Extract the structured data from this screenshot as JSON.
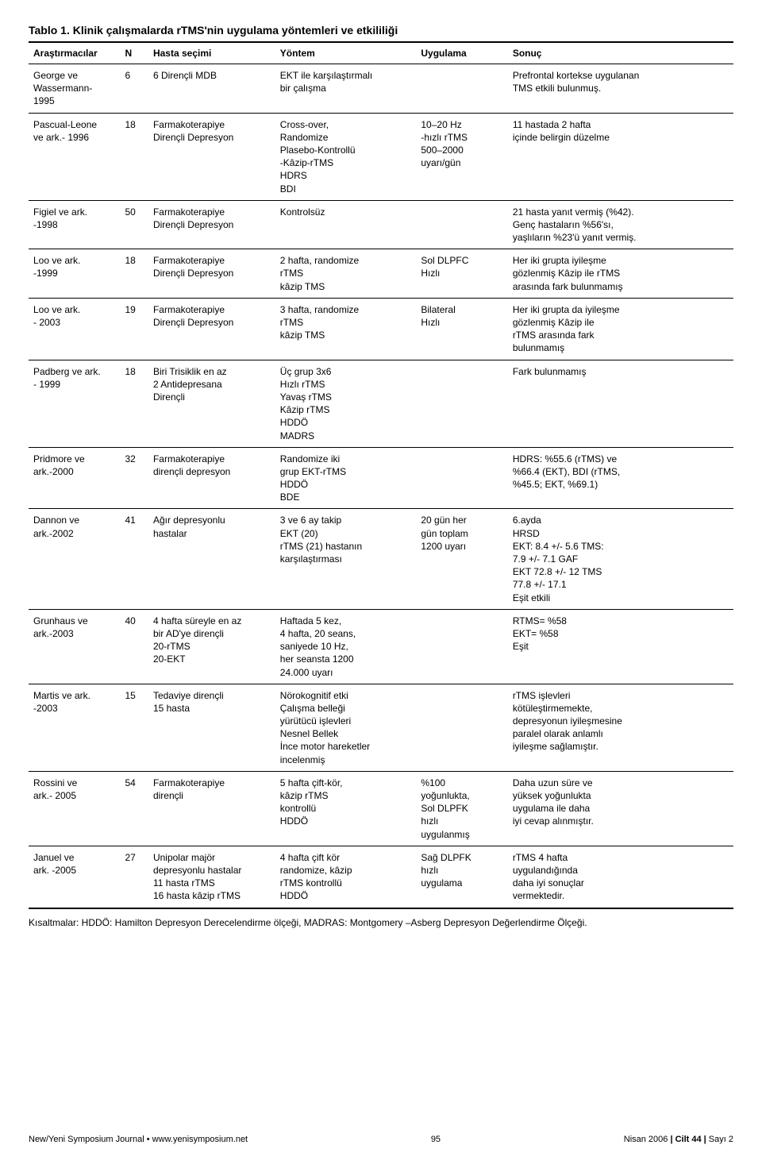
{
  "title": "Tablo 1. Klinik çalışmalarda rTMS'nin uygulama yöntemleri ve etkililiği",
  "columns": {
    "arastirmacilar": "Araştırmacılar",
    "n": "N",
    "hasta": "Hasta seçimi",
    "yontem": "Yöntem",
    "uygulama": "Uygulama",
    "sonuc": "Sonuç"
  },
  "rows": [
    {
      "arastirmacilar": "George ve\nWassermann-\n1995",
      "n": "6",
      "hasta": "6 Dirençli MDB",
      "yontem": "EKT ile karşılaştırmalı\nbir çalışma",
      "uygulama": "",
      "sonuc": "Prefrontal kortekse uygulanan\nTMS etkili bulunmuş."
    },
    {
      "arastirmacilar": "Pascual-Leone\nve ark.- 1996",
      "n": "18",
      "hasta": "Farmakoterapiye\nDirençli Depresyon",
      "yontem": "Cross-over,\nRandomize\nPlasebo-Kontrollü\n-Kâzip-rTMS\nHDRS\nBDI",
      "uygulama": "10–20 Hz\n-hızlı rTMS\n500–2000\nuyarı/gün",
      "sonuc": "11 hastada 2 hafta\niçinde belirgin düzelme"
    },
    {
      "arastirmacilar": "Figiel ve ark.\n-1998",
      "n": "50",
      "hasta": "Farmakoterapiye\nDirençli Depresyon",
      "yontem": "Kontrolsüz",
      "uygulama": "",
      "sonuc": "21 hasta yanıt vermiş (%42).\nGenç hastaların %56'sı,\nyaşlıların %23'ü yanıt vermiş."
    },
    {
      "arastirmacilar": "Loo ve ark.\n-1999",
      "n": "18",
      "hasta": "Farmakoterapiye\nDirençli Depresyon",
      "yontem": "2 hafta, randomize\nrTMS\nkâzip TMS",
      "uygulama": "Sol DLPFC\nHızlı",
      "sonuc": "Her iki grupta iyileşme\ngözlenmiş Kâzip ile rTMS\narasında fark bulunmamış"
    },
    {
      "arastirmacilar": "Loo ve ark.\n- 2003",
      "n": "19",
      "hasta": "Farmakoterapiye\nDirençli Depresyon",
      "yontem": "3 hafta, randomize\nrTMS\nkâzip TMS",
      "uygulama": "Bilateral\nHızlı",
      "sonuc": "Her iki grupta da iyileşme\ngözlenmiş Kâzip ile\nrTMS arasında fark\nbulunmamış"
    },
    {
      "arastirmacilar": "Padberg ve ark.\n- 1999",
      "n": "18",
      "hasta": "Biri Trisiklik en az\n2 Antidepresana\nDirençli",
      "yontem": "Üç grup 3x6\nHızlı rTMS\nYavaş rTMS\nKâzip rTMS\nHDDÖ\nMADRS",
      "uygulama": "",
      "sonuc": "Fark bulunmamış"
    },
    {
      "arastirmacilar": "Pridmore ve\nark.-2000",
      "n": "32",
      "hasta": "Farmakoterapiye\ndirençli depresyon",
      "yontem": "Randomize iki\ngrup EKT-rTMS\nHDDÖ\nBDE",
      "uygulama": "",
      "sonuc": "HDRS: %55.6 (rTMS) ve\n%66.4 (EKT), BDI (rTMS,\n%45.5; EKT, %69.1)"
    },
    {
      "arastirmacilar": "Dannon ve\nark.-2002",
      "n": "41",
      "hasta": "Ağır depresyonlu\nhastalar",
      "yontem": "3 ve 6 ay takip\nEKT (20)\nrTMS (21) hastanın\nkarşılaştırması",
      "uygulama": "20 gün her\ngün toplam\n1200 uyarı",
      "sonuc": "6.ayda\nHRSD\nEKT: 8.4 +/- 5.6 TMS:\n7.9 +/- 7.1 GAF\nEKT 72.8 +/- 12  TMS\n77.8 +/- 17.1\nEşit etkili"
    },
    {
      "arastirmacilar": "Grunhaus ve\nark.-2003",
      "n": "40",
      "hasta": "4 hafta süreyle en az\nbir AD'ye dirençli\n20-rTMS\n20-EKT",
      "yontem": "Haftada 5 kez,\n4 hafta, 20 seans,\nsaniyede 10 Hz,\nher seansta 1200\n24.000 uyarı",
      "uygulama": "",
      "sonuc": "RTMS= %58\nEKT= %58\nEşit"
    },
    {
      "arastirmacilar": "Martis ve ark.\n-2003",
      "n": "15",
      "hasta": "Tedaviye dirençli\n15 hasta",
      "yontem": "Nörokognitif etki\nÇalışma belleği\nyürütücü işlevleri\nNesnel Bellek\nİnce motor hareketler\nincelenmiş",
      "uygulama": "",
      "sonuc": "rTMS işlevleri\nkötüleştirmemekte,\ndepresyonun iyileşmesine\nparalel olarak anlamlı\niyileşme sağlamıştır."
    },
    {
      "arastirmacilar": "Rossini ve\nark.- 2005",
      "n": "54",
      "hasta": "Farmakoterapiye\ndirençli",
      "yontem": "5 hafta çift-kör,\nkâzip rTMS\nkontrollü\nHDDÖ",
      "uygulama": "%100\nyoğunlukta,\nSol DLPFK\nhızlı\nuygulanmış",
      "sonuc": "Daha uzun süre ve\nyüksek yoğunlukta\nuygulama ile daha\niyi cevap alınmıştır."
    },
    {
      "arastirmacilar": "Januel ve\nark. -2005",
      "n": "27",
      "hasta": "Unipolar majör\ndepresyonlu hastalar\n11 hasta rTMS\n16 hasta kâzip rTMS",
      "yontem": "4 hafta çift kör\nrandomize, kâzip\nrTMS kontrollü\nHDDÖ",
      "uygulama": "Sağ DLPFK\nhızlı\nuygulama",
      "sonuc": "rTMS 4 hafta\nuygulandığında\ndaha iyi sonuçlar\nvermektedir."
    }
  ],
  "abbrev": "Kısaltmalar: HDDÖ:  Hamilton Depresyon Derecelendirme ölçeği, MADRAS: Montgomery –Asberg Depresyon Değerlendirme Ölçeği.",
  "footer": {
    "left": "New/Yeni Symposium Journal • www.yenisymposium.net",
    "page": "95",
    "right_prefix": "Nisan 2006 ",
    "right_mid": "| Cilt 44 |",
    "right_suffix": " Sayı 2"
  }
}
